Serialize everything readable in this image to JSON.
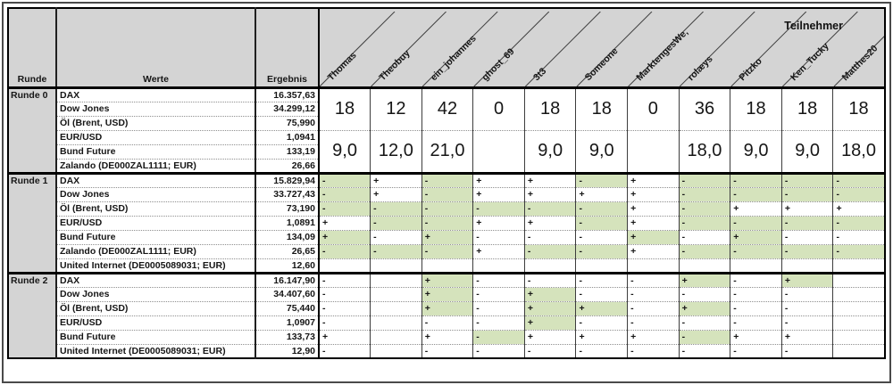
{
  "window": {
    "teilnehmer_label": "Teilnehmer"
  },
  "colors": {
    "hit_green": "#d5e3bc",
    "header_gray": "#d4d4d4"
  },
  "table": {
    "col_headers": {
      "runde": "Runde",
      "werte": "Werte",
      "ergebnis": "Ergebnis"
    },
    "participants": [
      "Thomas",
      "Theobuy",
      "ein_johannes",
      "ghost_69",
      "3t3",
      "Someone",
      "MarktengesWe‚",
      "rolæys",
      "Pitzko",
      "Ken_Tucky",
      "Matthes20"
    ],
    "mark_legend": {
      "plus": "+",
      "minus": "-",
      "hit_suffix": "*"
    },
    "rounds": [
      {
        "label": "Runde 0",
        "rows": [
          {
            "werte": "DAX",
            "ergebnis": "16.357,63"
          },
          {
            "werte": "Dow Jones",
            "ergebnis": "34.299,12"
          },
          {
            "werte": "Öl (Brent, USD)",
            "ergebnis": "75,990"
          },
          {
            "werte": "EUR/USD",
            "ergebnis": "1,0941"
          },
          {
            "werte": "Bund Future",
            "ergebnis": "133,19"
          },
          {
            "werte": "Zalando (DE000ZAL1111; EUR)",
            "ergebnis": "26,66"
          }
        ],
        "score_blocks": [
          {
            "values": [
              "18",
              "12",
              "42",
              "0",
              "18",
              "18",
              "0",
              "36",
              "18",
              "18",
              "18"
            ]
          },
          {
            "values": [
              "9,0",
              "12,0",
              "21,0",
              "",
              "9,0",
              "9,0",
              "",
              "18,0",
              "9,0",
              "9,0",
              "18,0"
            ]
          }
        ]
      },
      {
        "label": "Runde 1",
        "rows": [
          {
            "werte": "DAX",
            "ergebnis": "15.829,94",
            "marks": [
              "-*",
              "+",
              "-*",
              "+",
              "+",
              "-*",
              "+",
              "-*",
              "-*",
              "-*",
              "-*"
            ]
          },
          {
            "werte": "Dow Jones",
            "ergebnis": "33.727,43",
            "marks": [
              "-*",
              "+",
              "-*",
              "+",
              "+",
              "+",
              "+",
              "-*",
              "-*",
              "-*",
              "-*"
            ]
          },
          {
            "werte": "Öl (Brent, USD)",
            "ergebnis": "73,190",
            "marks": [
              "-*",
              "-*",
              "-*",
              "-*",
              "-*",
              "-*",
              "+",
              "-*",
              "+",
              "+",
              "+"
            ]
          },
          {
            "werte": "EUR/USD",
            "ergebnis": "1,0891",
            "marks": [
              "+",
              "-*",
              "-*",
              "+",
              "+",
              "-*",
              "+",
              "-*",
              "-*",
              "-*",
              "-*"
            ]
          },
          {
            "werte": "Bund Future",
            "ergebnis": "134,09",
            "marks": [
              "+*",
              "-",
              "+*",
              "-",
              "-",
              "-",
              "+*",
              "-",
              "+*",
              "-",
              "-"
            ]
          },
          {
            "werte": "Zalando (DE000ZAL1111; EUR)",
            "ergebnis": "26,65",
            "marks": [
              "-*",
              "-*",
              "-*",
              "+",
              "-*",
              "-*",
              "+",
              "-*",
              "-*",
              "-*",
              "-*"
            ]
          },
          {
            "werte": "United Internet (DE0005089031; EUR)",
            "ergebnis": "12,60",
            "marks": [
              "",
              "",
              "",
              "",
              "",
              "",
              "",
              "",
              "",
              "",
              ""
            ]
          }
        ]
      },
      {
        "label": "Runde 2",
        "rows": [
          {
            "werte": "DAX",
            "ergebnis": "16.147,90",
            "marks": [
              "-",
              "",
              "+*",
              "-",
              "-",
              "-",
              "-",
              "+*",
              "-",
              "+*",
              ""
            ]
          },
          {
            "werte": "Dow Jones",
            "ergebnis": "34.407,60",
            "marks": [
              "-",
              "",
              "+*",
              "-",
              "+*",
              "-",
              "-",
              "-",
              "-",
              "-",
              ""
            ]
          },
          {
            "werte": "Öl (Brent, USD)",
            "ergebnis": "75,440",
            "marks": [
              "-",
              "",
              "+*",
              "-",
              "+*",
              "+*",
              "-",
              "+*",
              "-",
              "-",
              ""
            ]
          },
          {
            "werte": "EUR/USD",
            "ergebnis": "1,0907",
            "marks": [
              "-",
              "",
              "-",
              "-",
              "+*",
              "-",
              "-",
              "-",
              "-",
              "-",
              ""
            ]
          },
          {
            "werte": "Bund Future",
            "ergebnis": "133,73",
            "marks": [
              "+",
              "",
              "+",
              "-*",
              "+",
              "+",
              "+",
              "-*",
              "+",
              "+",
              ""
            ]
          },
          {
            "werte": "United Internet (DE0005089031; EUR)",
            "ergebnis": "12,90",
            "marks": [
              "-",
              "",
              "-",
              "-",
              "-",
              "-",
              "-",
              "-",
              "-",
              "-",
              ""
            ]
          }
        ]
      }
    ]
  }
}
